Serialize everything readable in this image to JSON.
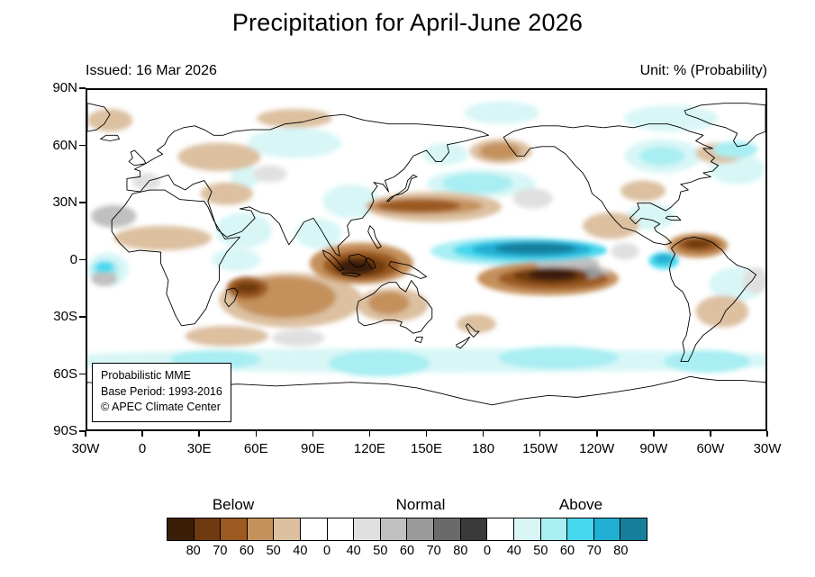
{
  "title": "Precipitation for April-June 2026",
  "map": {
    "issued": "Issued: 16 Mar 2026",
    "unit": "Unit: % (Probability)",
    "inset": [
      "Probabilistic MME",
      "Base Period: 1993-2016",
      "© APEC Climate Center"
    ],
    "y_ticks": [
      "90N",
      "60N",
      "30N",
      "0",
      "30S",
      "60S",
      "90S"
    ],
    "x_ticks": [
      "30W",
      "0",
      "30E",
      "60E",
      "90E",
      "120E",
      "150E",
      "180",
      "150W",
      "120W",
      "90W",
      "60W",
      "30W"
    ]
  },
  "chart_data": {
    "type": "heatmap",
    "title": "Precipitation for April-June 2026",
    "issued": "16 Mar 2026",
    "unit": "% (Probability)",
    "projection": {
      "lon_range": [
        -30,
        330
      ],
      "lat_range": [
        -90,
        90
      ],
      "lon_tick_step_deg": 30,
      "lat_tick_step_deg": 30,
      "lat_tick_labels": [
        "90N",
        "60N",
        "30N",
        "0",
        "30S",
        "60S",
        "90S"
      ],
      "lon_tick_labels": [
        "30W",
        "0",
        "30E",
        "60E",
        "90E",
        "120E",
        "150E",
        "180",
        "150W",
        "120W",
        "90W",
        "60W",
        "30W"
      ]
    },
    "legend": {
      "categories": [
        "Below",
        "Normal",
        "Above"
      ],
      "tick_labels": [
        "80",
        "70",
        "60",
        "50",
        "40",
        "0",
        "40",
        "50",
        "60",
        "70",
        "80",
        "0",
        "40",
        "50",
        "60",
        "70",
        "80"
      ],
      "cell_colors": [
        "#3b1e08",
        "#6f3a10",
        "#9c5a20",
        "#c4915c",
        "#dcc0a0",
        "#ffffff",
        "#ffffff",
        "#e0e0e0",
        "#c0c0c0",
        "#9a9a9a",
        "#6a6a6a",
        "#3a3a3a",
        "#ffffff",
        "#d8f6f6",
        "#a8eef2",
        "#46d8ee",
        "#20aed4",
        "#157f9c"
      ],
      "palette": {
        "below": {
          "40": "#dcc0a0",
          "50": "#c4915c",
          "60": "#9c5a20",
          "70": "#6f3a10",
          "80": "#3b1e08"
        },
        "normal": {
          "40": "#e0e0e0",
          "50": "#c0c0c0",
          "60": "#9a9a9a",
          "70": "#6a6a6a",
          "80": "#3a3a3a"
        },
        "above": {
          "40": "#d8f6f6",
          "50": "#a8eef2",
          "60": "#46d8ee",
          "70": "#20aed4",
          "80": "#157f9c"
        }
      }
    },
    "features_format": "[lon_min, lon_max, lat_min, lat_max, category, probability_percent]",
    "features": [
      [
        150,
        208,
        33,
        48,
        "above",
        40
      ],
      [
        95,
        125,
        22,
        40,
        "above",
        40
      ],
      [
        -60,
        360,
        -60,
        -47,
        "above",
        40
      ],
      [
        255,
        296,
        46,
        64,
        "above",
        40
      ],
      [
        300,
        330,
        40,
        56,
        "above",
        40
      ],
      [
        55,
        105,
        54,
        70,
        "above",
        40
      ],
      [
        38,
        68,
        6,
        25,
        "above",
        40
      ],
      [
        80,
        105,
        6,
        22,
        "above",
        40
      ],
      [
        256,
        282,
        16,
        30,
        "above",
        40
      ],
      [
        300,
        330,
        -22,
        -4,
        "above",
        40
      ],
      [
        36,
        62,
        -6,
        6,
        "above",
        40
      ],
      [
        46,
        62,
        38,
        50,
        "above",
        40
      ],
      [
        148,
        172,
        50,
        62,
        "above",
        40
      ],
      [
        -30,
        -8,
        -14,
        4,
        "above",
        40
      ],
      [
        170,
        210,
        72,
        84,
        "above",
        40
      ],
      [
        255,
        305,
        68,
        82,
        "above",
        40
      ],
      [
        152,
        240,
        -3,
        12,
        "above",
        50
      ],
      [
        158,
        196,
        35,
        46,
        "above",
        50
      ],
      [
        98,
        152,
        -62,
        -48,
        "above",
        50
      ],
      [
        188,
        252,
        -58,
        -46,
        "above",
        50
      ],
      [
        276,
        322,
        -60,
        -48,
        "above",
        50
      ],
      [
        14,
        62,
        -58,
        -48,
        "above",
        50
      ],
      [
        263,
        287,
        50,
        60,
        "above",
        50
      ],
      [
        302,
        326,
        54,
        63,
        "above",
        50
      ],
      [
        -28,
        -13,
        -10,
        0,
        "above",
        50
      ],
      [
        164,
        246,
        -1,
        11,
        "above",
        60
      ],
      [
        268,
        284,
        -5,
        4,
        "above",
        60
      ],
      [
        -26,
        -16,
        -7,
        -1,
        "above",
        60
      ],
      [
        174,
        238,
        1,
        10,
        "above",
        70
      ],
      [
        271,
        281,
        -2,
        3,
        "above",
        70
      ],
      [
        186,
        230,
        3,
        9,
        "above",
        80
      ],
      [
        -16,
        36,
        5,
        18,
        "below",
        40
      ],
      [
        30,
        58,
        29,
        41,
        "below",
        40
      ],
      [
        40,
        116,
        -36,
        -7,
        "below",
        40
      ],
      [
        113,
        151,
        -33,
        -15,
        "below",
        40
      ],
      [
        233,
        263,
        11,
        25,
        "below",
        40
      ],
      [
        293,
        319,
        51,
        62,
        "below",
        40
      ],
      [
        173,
        206,
        51,
        64,
        "below",
        40
      ],
      [
        18,
        62,
        47,
        62,
        "below",
        40
      ],
      [
        293,
        321,
        -36,
        -19,
        "below",
        40
      ],
      [
        22,
        66,
        -46,
        -35,
        "below",
        40
      ],
      [
        166,
        187,
        -39,
        -29,
        "below",
        40
      ],
      [
        253,
        277,
        31,
        42,
        "below",
        40
      ],
      [
        118,
        190,
        20,
        36,
        "below",
        40
      ],
      [
        -30,
        -6,
        68,
        80,
        "below",
        40
      ],
      [
        60,
        100,
        70,
        80,
        "below",
        40
      ],
      [
        48,
        102,
        -31,
        -9,
        "below",
        50
      ],
      [
        119,
        141,
        -29,
        -17,
        "below",
        50
      ],
      [
        118,
        180,
        24,
        33,
        "below",
        50
      ],
      [
        88,
        143,
        -13,
        9,
        "below",
        50
      ],
      [
        177,
        252,
        -19,
        -1,
        "below",
        50
      ],
      [
        278,
        310,
        1,
        14,
        "below",
        50
      ],
      [
        178,
        200,
        53,
        62,
        "below",
        50
      ],
      [
        95,
        136,
        -11,
        5,
        "below",
        60
      ],
      [
        188,
        247,
        -16,
        -4,
        "below",
        60
      ],
      [
        283,
        306,
        4,
        12,
        "below",
        60
      ],
      [
        124,
        168,
        25,
        32,
        "below",
        60
      ],
      [
        44,
        66,
        -21,
        -9,
        "below",
        60
      ],
      [
        100,
        129,
        -9,
        2,
        "below",
        70
      ],
      [
        196,
        236,
        -13,
        -4,
        "below",
        70
      ],
      [
        287,
        301,
        6,
        11,
        "below",
        70
      ],
      [
        48,
        62,
        -18,
        -12,
        "below",
        70
      ],
      [
        103,
        122,
        -8,
        0,
        "below",
        80
      ],
      [
        204,
        230,
        -11,
        -5,
        "below",
        80
      ],
      [
        196,
        217,
        27,
        38,
        "normal",
        40
      ],
      [
        318,
        332,
        -18,
        -4,
        "normal",
        40
      ],
      [
        -6,
        9,
        37,
        46,
        "normal",
        40
      ],
      [
        248,
        263,
        0,
        9,
        "normal",
        40
      ],
      [
        68,
        96,
        -46,
        -37,
        "normal",
        40
      ],
      [
        58,
        76,
        41,
        50,
        "normal",
        40
      ],
      [
        208,
        242,
        -6,
        2,
        "normal",
        50
      ],
      [
        227,
        247,
        -13,
        -3,
        "normal",
        50
      ],
      [
        -28,
        -4,
        17,
        29,
        "normal",
        50
      ],
      [
        -28,
        -14,
        -14,
        -6,
        "normal",
        50
      ],
      [
        230,
        243,
        -10,
        -4,
        "normal",
        60
      ]
    ]
  }
}
